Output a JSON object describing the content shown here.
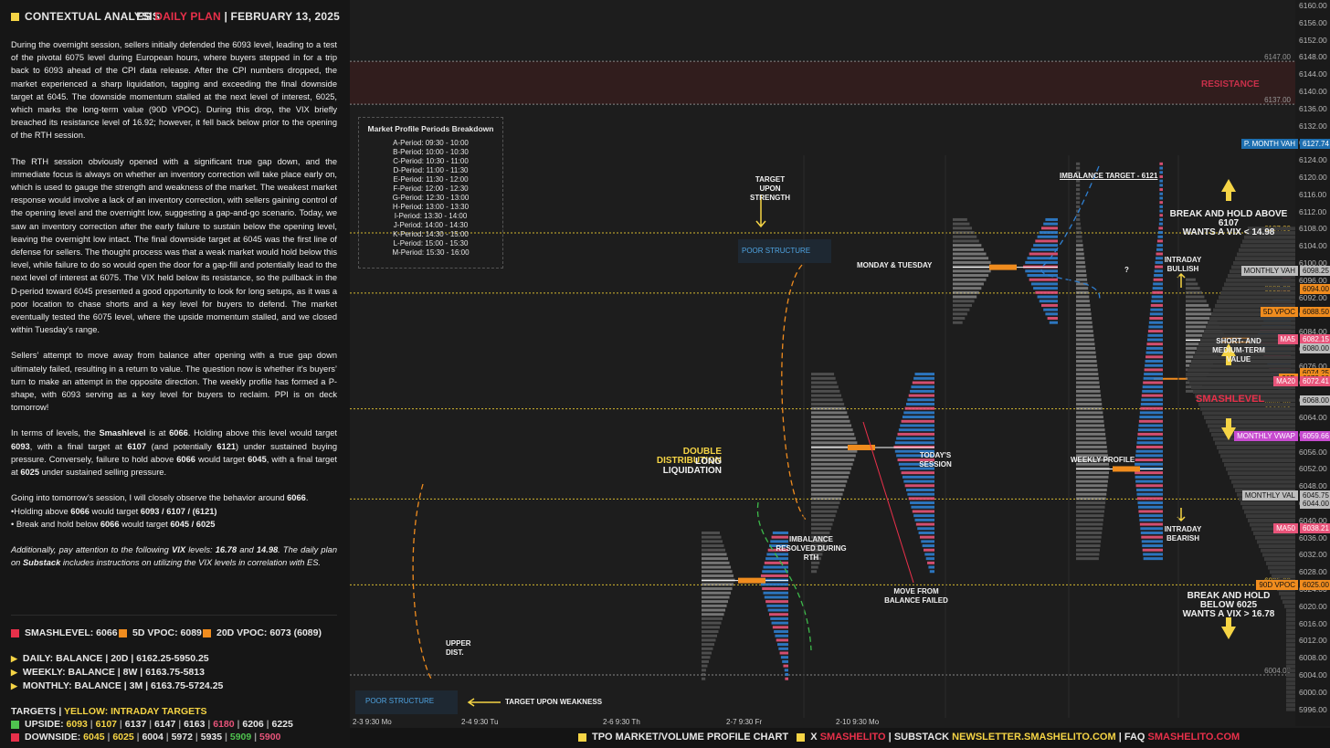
{
  "header": {
    "title": "CONTEXTUAL ANALYSIS",
    "plan_prefix": "ES",
    "plan_name": "DAILY PLAN",
    "date": "FEBRUARY 13, 2025",
    "separator": "|"
  },
  "analysis": {
    "p1": "During the overnight session, sellers initially defended the 6093 level, leading to a test of the pivotal 6075 level during European hours, where buyers stepped in for a trip back to 6093 ahead of the CPI data release. After the CPI numbers dropped, the market experienced a sharp liquidation, tagging and exceeding the final downside target at 6045. The downside momentum stalled at the next level of interest, 6025, which marks the long-term value (90D VPOC). During this drop, the VIX briefly breached its resistance level of 16.92; however, it fell back below prior to the opening of the RTH session.",
    "p2": "The RTH session obviously opened with a significant true gap down, and the immediate focus is always on whether an inventory correction will take place early on, which is used to gauge the strength and weakness of the market. The weakest market response would involve a lack of an inventory correction, with sellers gaining control of the opening level and the overnight low, suggesting a gap-and-go scenario. Today, we saw an inventory correction after the early failure to sustain below the opening level, leaving the overnight low intact. The final downside target at 6045 was the first line of defense for sellers. The thought process was that a weak market would hold below this level, while failure to do so would open the door for a gap-fill and potentially lead to the next level of interest at 6075. The VIX held below its resistance, so the pullback in the D-period toward 6045 presented a good opportunity to look for long setups, as it was a poor location to chase shorts and a key level for buyers to defend. The market eventually tested the 6075 level, where the upside momentum stalled, and we closed within Tuesday’s range.",
    "p3": "Sellers’ attempt to move away from balance after opening with a true gap down ultimately failed, resulting in a return to value. The question now is whether it’s buyers’ turn to make an attempt in the opposite direction. The weekly profile has formed a P-shape, with 6093 serving as a key level for buyers to reclaim. PPI is on deck tomorrow!",
    "p4a": "In terms of levels, the ",
    "p4b": "Smashlevel",
    "p4c": " is at ",
    "p4d": "6066",
    "p4e": ". Holding above this level would target ",
    "p4f": "6093",
    "p4g": ", with a final target at ",
    "p4h": "6107",
    "p4i": " (and potentially ",
    "p4j": "6121",
    "p4k": ") under sustained buying pressure. Conversely, failure to hold above ",
    "p4l": "6066",
    "p4m": " would target ",
    "p4n": "6045",
    "p4o": ", with a final target at ",
    "p4p": "6025",
    "p4q": " under sustained selling pressure.",
    "p5a": "Going into tomorrow’s session, I will closely observe the behavior around ",
    "p5b": "6066",
    "p5c": "•Holding above ",
    "p5d": "6066",
    "p5e": " would target ",
    "p5f": "6093 / 6107 / (6121)",
    "p5g": "• Break and hold below ",
    "p5h": "6066",
    "p5i": " would target ",
    "p5j": "6045 / 6025",
    "p6a": "Additionally, pay attention to the following ",
    "p6b": "VIX",
    "p6c": " levels: ",
    "p6d": "16.78",
    "p6e": " and ",
    "p6f": "14.98",
    "p6g": ". The daily plan on ",
    "p6h": "Substack",
    "p6i": " includes instructions on utilizing the VIX levels in correlation with ES."
  },
  "summary": {
    "smashlevel": "SMASHLEVEL: 6066",
    "vpoc5": "5D VPOC: 6089",
    "vpoc20": "20D VPOC: 6073 (6089)",
    "daily": "DAILY: BALANCE | 20D | 6162.25-5950.25",
    "weekly": "WEEKLY: BALANCE | 8W | 6163.75-5813",
    "monthly": "MONTHLY: BALANCE | 3M | 6163.75-5724.25",
    "targets_label": "TARGETS",
    "targets_sep": "|",
    "targets_yellow": "YELLOW: INTRADAY TARGETS",
    "upside_label": "UPSIDE:",
    "upside": [
      {
        "v": "6093",
        "c": "#f5d445"
      },
      {
        "v": "6107",
        "c": "#f5d445"
      },
      {
        "v": "6137",
        "c": "#e6e6e6"
      },
      {
        "v": "6147",
        "c": "#e6e6e6"
      },
      {
        "v": "6163",
        "c": "#e6e6e6"
      },
      {
        "v": "6180",
        "c": "#e8547a"
      },
      {
        "v": "6206",
        "c": "#e6e6e6"
      },
      {
        "v": "6225",
        "c": "#e6e6e6"
      }
    ],
    "downside_label": "DOWNSIDE:",
    "downside": [
      {
        "v": "6045",
        "c": "#f5d445"
      },
      {
        "v": "6025",
        "c": "#f5d445"
      },
      {
        "v": "6004",
        "c": "#e6e6e6"
      },
      {
        "v": "5972",
        "c": "#e6e6e6"
      },
      {
        "v": "5935",
        "c": "#e6e6e6"
      },
      {
        "v": "5909",
        "c": "#4fc34f"
      },
      {
        "v": "5900",
        "c": "#e8547a"
      }
    ]
  },
  "periods": {
    "title": "Market Profile Periods Breakdown",
    "rows": [
      "A-Period: 09:30 - 10:00",
      "B-Period: 10:00 - 10:30",
      "C-Period: 10:30 - 11:00",
      "D-Period: 11:00 - 11:30",
      "E-Period: 11:30 - 12:00",
      "F-Period: 12:00 - 12:30",
      "G-Period: 12:30 - 13:00",
      "H-Period: 13:00 - 13:30",
      "I-Period: 13:30 - 14:00",
      "J-Period: 14:00 - 14:30",
      "K-Period: 14:30 - 15:00",
      "L-Period: 15:00 - 15:30",
      "M-Period: 15:30 - 16:00"
    ]
  },
  "chart_data": {
    "type": "tpo-profile",
    "ylim": [
      5994,
      6160
    ],
    "y_ticks": [
      6160,
      6156,
      6152,
      6148,
      6144,
      6140,
      6136,
      6132,
      6128,
      6124,
      6120,
      6116,
      6112,
      6108,
      6104,
      6100,
      6096,
      6092,
      6088,
      6084,
      6080,
      6076,
      6072,
      6068,
      6064,
      6060,
      6056,
      6052,
      6048,
      6044,
      6040,
      6036,
      6032,
      6028,
      6024,
      6020,
      6016,
      6012,
      6008,
      6004,
      6000,
      5996
    ],
    "date_labels": [
      "2-3  9:30 Mo",
      "2-4  9:30 Tu",
      "2-6  9:30 Th",
      "2-7  9:30 Fr",
      "2-10  9:30 Mo"
    ],
    "sessions": [
      {
        "low": 6003,
        "high": 6037,
        "poc": 6026,
        "vah": 6032,
        "val": 6018
      },
      {
        "low": 6028,
        "high": 6074,
        "poc": 6057,
        "vah": 6066,
        "val": 6045
      },
      {
        "low": 6018,
        "high": 6087,
        "poc": 6059,
        "vah": 6072,
        "val": 6048
      },
      {
        "low": 6086,
        "high": 6110,
        "poc": 6099,
        "vah": 6104,
        "val": 6092
      },
      {
        "low": 6031,
        "high": 6123,
        "poc": 6052,
        "vah": 6104,
        "val": 6045
      },
      {
        "low": 6070,
        "high": 6096,
        "poc": 6082,
        "vah": 6090,
        "val": 6076
      },
      {
        "low": 6053,
        "high": 6097,
        "poc": 6080,
        "vah": 6090,
        "val": 6070
      },
      {
        "low": 6025,
        "high": 6098,
        "poc": 6075,
        "vah": 6093,
        "val": 6045
      }
    ],
    "levels": [
      {
        "name": "6147.00",
        "value": 6147,
        "style": "dotted"
      },
      {
        "name": "6137.00",
        "value": 6137,
        "style": "dotted"
      },
      {
        "name": "6107.00",
        "value": 6107,
        "style": "dotted"
      },
      {
        "name": "6093.00",
        "value": 6093,
        "style": "dotted"
      },
      {
        "name": "6066.00",
        "value": 6066,
        "style": "dotted"
      },
      {
        "name": "6045.00",
        "value": 6045,
        "style": "dotted"
      },
      {
        "name": "6025.00",
        "value": 6025,
        "style": "dotted"
      },
      {
        "name": "6004.00",
        "value": 6004,
        "style": "dotted"
      }
    ],
    "price_tags": [
      {
        "label": "P. MONTH VAH",
        "price": "6127.74",
        "value": 6127.7,
        "color": "#1e6fb0"
      },
      {
        "label": "MONTHLY VAH",
        "price": "6098.25",
        "value": 6098.25,
        "color": "#bdbdbd"
      },
      {
        "label": "",
        "price": "6094.00",
        "value": 6094,
        "color": "#f08c1e"
      },
      {
        "label": "5D VPOC",
        "price": "6088.50",
        "value": 6088.5,
        "color": "#f08c1e"
      },
      {
        "label": "MA5",
        "price": "6082.15",
        "value": 6082.15,
        "color": "#e8547a"
      },
      {
        "label": "",
        "price": "6080.00",
        "value": 6080,
        "color": "#bdbdbd"
      },
      {
        "label": "",
        "price": "6074.25",
        "value": 6074.25,
        "color": "#f08c1e"
      },
      {
        "label": "20D",
        "price": "6073.00",
        "value": 6073,
        "color": "#f08c1e"
      },
      {
        "label": "MA20",
        "price": "6072.41",
        "value": 6072.41,
        "color": "#e8547a"
      },
      {
        "label": "",
        "price": "6068.00",
        "value": 6068,
        "color": "#bdbdbd"
      },
      {
        "label": "MONTHLY VWAP",
        "price": "6059.66",
        "value": 6059.66,
        "color": "#c74bd0"
      },
      {
        "label": "MONTHLY VAL",
        "price": "6045.75",
        "value": 6045.75,
        "color": "#bdbdbd"
      },
      {
        "label": "",
        "price": "6044.00",
        "value": 6044,
        "color": "#bdbdbd"
      },
      {
        "label": "MA50",
        "price": "6038.21",
        "value": 6038.21,
        "color": "#e8547a"
      },
      {
        "label": "90D VPOC",
        "price": "6025.00",
        "value": 6025,
        "color": "#f08c1e"
      }
    ],
    "annotations": {
      "resistance": "RESISTANCE",
      "smashlevel": "SMASHLEVEL",
      "break_above": "BREAK AND HOLD ABOVE 6107",
      "wants_vix_above": "WANTS A VIX < 14.98",
      "break_below": "BREAK AND HOLD BELOW 6025",
      "wants_vix_below": "WANTS A VIX > 16.78",
      "short_medium": "SHORT- AND MEDIUM-TERM VALUE",
      "intraday_bullish": "INTRADAY BULLISH",
      "intraday_bearish": "INTRADAY BEARISH",
      "imbalance_target": "IMBALANCE TARGET - 6121",
      "monday_tuesday": "MONDAY & TUESDAY",
      "todays_session": "TODAY'S SESSION",
      "weekly_profile": "WEEKLY PROFILE",
      "double_distribution": "DOUBLE DISTRIBUTION",
      "long_liquidation": "LONG LIQUIDATION",
      "target_strength": "TARGET UPON STRENGTH",
      "target_weakness": "TARGET UPON WEAKNESS",
      "poor_structure": "POOR STRUCTURE",
      "imbalance_resolved": "IMBALANCE RESOLVED DURING RTH",
      "move_from_balance": "MOVE FROM BALANCE FAILED",
      "upper_dist": "UPPER DIST.",
      "question": "?"
    }
  },
  "footer": {
    "chart": "TPO MARKET/VOLUME PROFILE CHART",
    "x": "X",
    "handle": "SMASHELITO",
    "sep": "|",
    "substack": "SUBSTACK",
    "newsletter": "NEWSLETTER.SMASHELITO.COM",
    "faq": "FAQ",
    "site": "SMASHELITO.COM"
  }
}
